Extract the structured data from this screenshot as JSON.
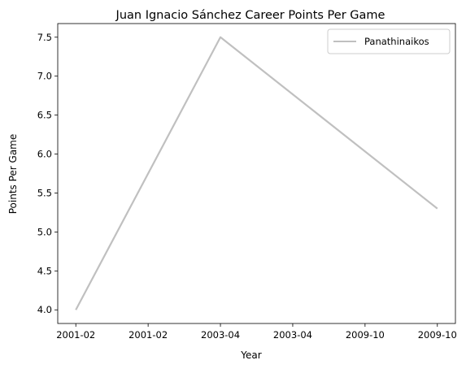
{
  "chart_data": {
    "type": "line",
    "title": "Juan Ignacio Sánchez Career Points Per Game",
    "xlabel": "Year",
    "ylabel": "Points Per Game",
    "x_tick_labels": [
      "2001-02",
      "2001-02",
      "2003-04",
      "2003-04",
      "2009-10",
      "2009-10"
    ],
    "x_tick_positions": [
      0,
      0.5,
      1,
      1.5,
      2,
      2.5
    ],
    "y_ticks": [
      4.0,
      4.5,
      5.0,
      5.5,
      6.0,
      6.5,
      7.0,
      7.5
    ],
    "y_tick_labels": [
      "4.0",
      "4.5",
      "5.0",
      "5.5",
      "6.0",
      "6.5",
      "7.0",
      "7.5"
    ],
    "xlim": [
      -0.125,
      2.625
    ],
    "ylim": [
      3.825,
      7.675
    ],
    "grid": false,
    "legend_position": "upper right",
    "series": [
      {
        "name": "Panathinaikos",
        "color": "#c0c0c0",
        "x": [
          "2001-02",
          "2003-04",
          "2009-10"
        ],
        "x_index": [
          0,
          1,
          2.5
        ],
        "y": [
          4.0,
          7.5,
          5.3
        ]
      }
    ]
  }
}
